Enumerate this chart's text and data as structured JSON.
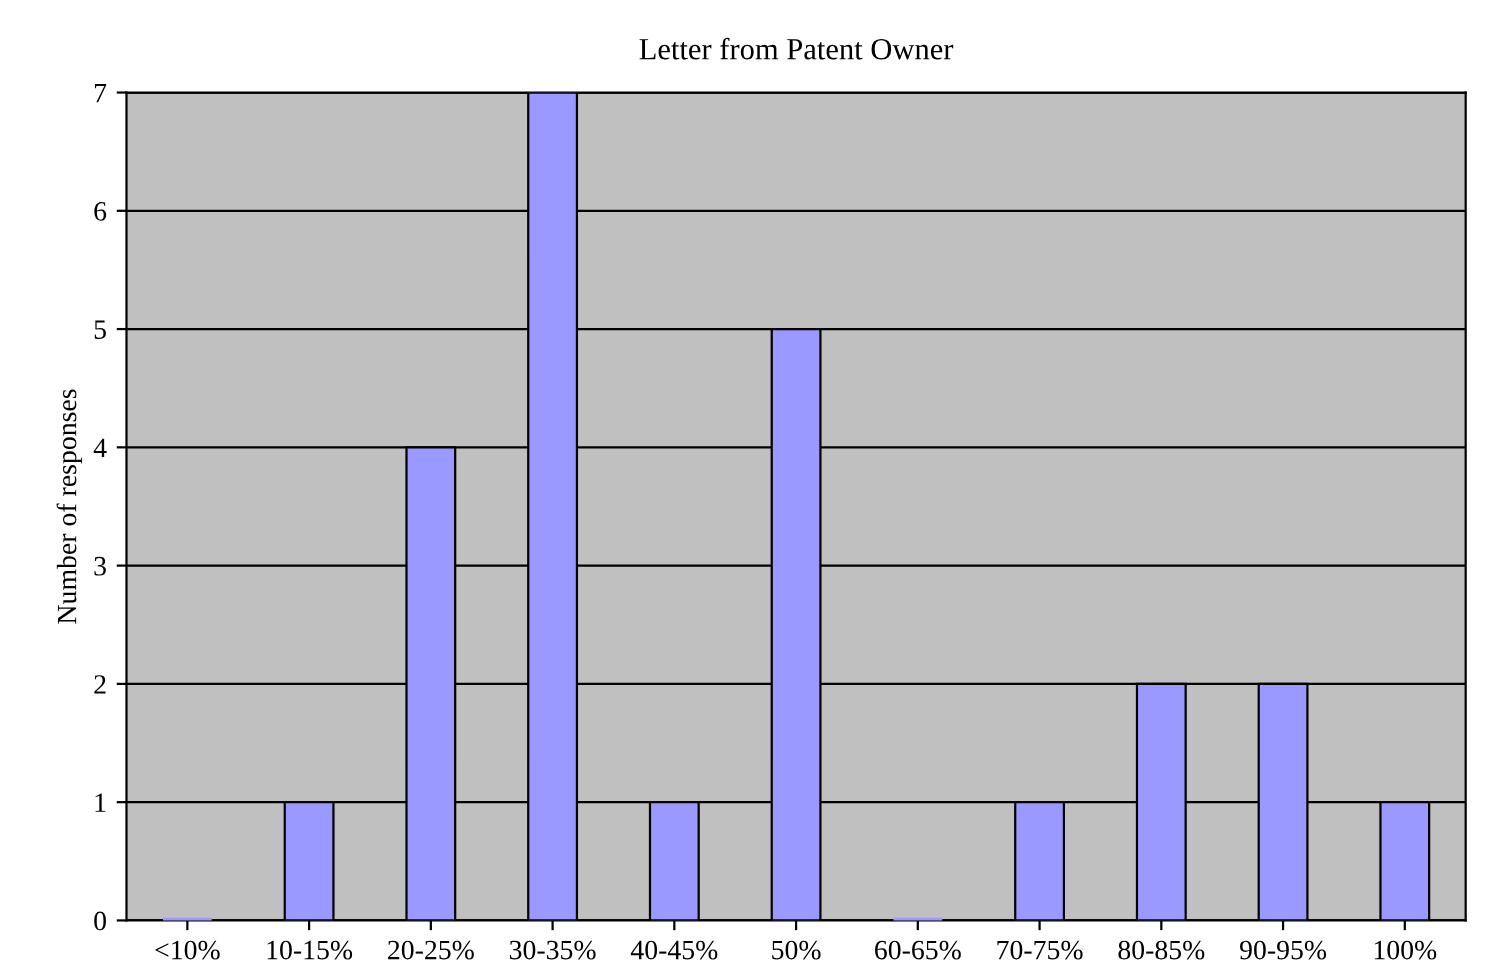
{
  "chart_data": {
    "type": "bar",
    "title": "Letter from Patent Owner",
    "ylabel": "Number of responses",
    "categories": [
      "<10%",
      "10-15%",
      "20-25%",
      "30-35%",
      "40-45%",
      "50%",
      "60-65%",
      "70-75%",
      "80-85%",
      "90-95%",
      "100%"
    ],
    "values": [
      0,
      1,
      4,
      7,
      1,
      5,
      0,
      1,
      2,
      2,
      1
    ],
    "color": "#9999ff",
    "ylim": [
      0,
      7
    ],
    "yticks": [
      0,
      1,
      2,
      3,
      4,
      5,
      6,
      7
    ],
    "grid": "y",
    "legend": false
  }
}
